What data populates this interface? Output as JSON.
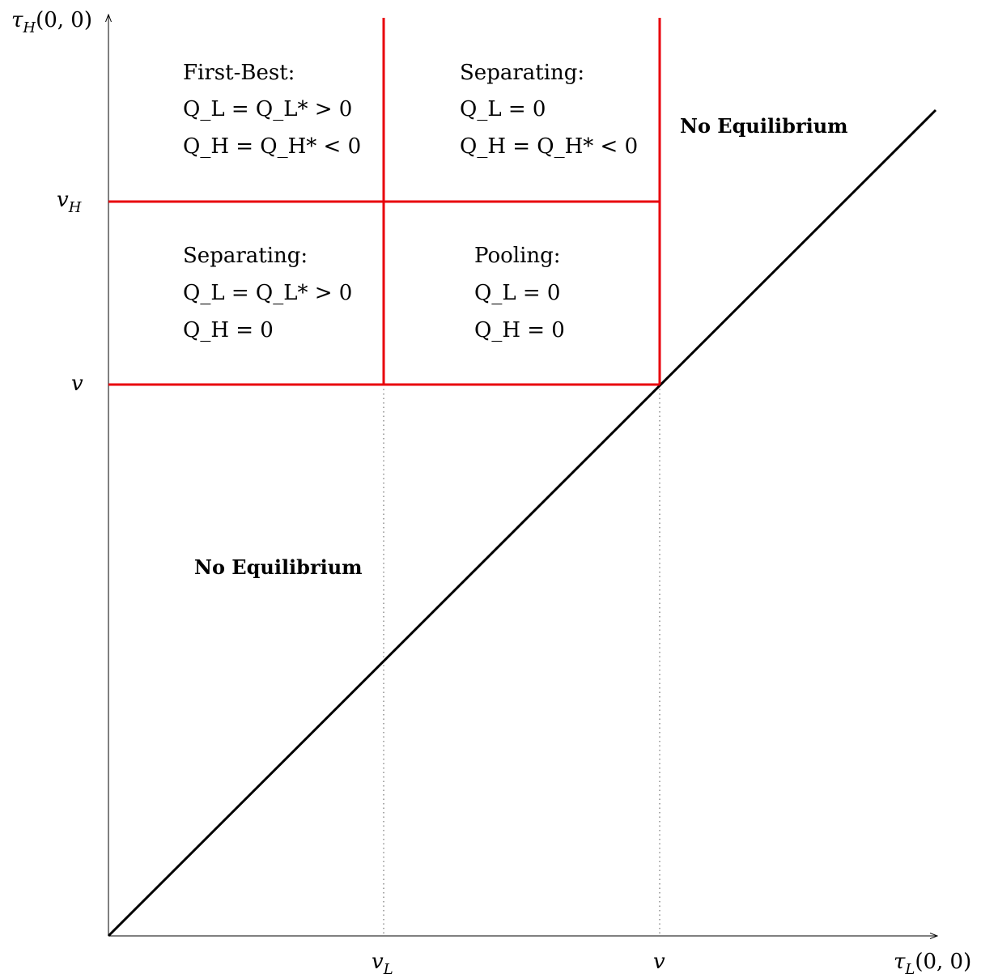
{
  "axes": {
    "x_label": {
      "main": "τ",
      "sub": "L",
      "args": "(0, 0)"
    },
    "y_label": {
      "main": "τ",
      "sub": "H",
      "args": "(0, 0)"
    }
  },
  "ticks": {
    "x": [
      {
        "main": "v",
        "sub": "L"
      },
      {
        "main": "v",
        "sub": ""
      }
    ],
    "y": [
      {
        "main": "v",
        "sub": "H"
      },
      {
        "main": "v",
        "sub": ""
      }
    ]
  },
  "regions": {
    "first_best": {
      "title": "First-Best:",
      "line1": "Q_L = Q_L* > 0",
      "line2": "Q_H = Q_H* < 0"
    },
    "separating_top": {
      "title": "Separating:",
      "line1": "Q_L = 0",
      "line2": "Q_H = Q_H* < 0"
    },
    "separating_mid": {
      "title": "Separating:",
      "line1": "Q_L = Q_L* > 0",
      "line2": "Q_H = 0"
    },
    "pooling": {
      "title": "Pooling:",
      "line1": "Q_L = 0",
      "line2": "Q_H = 0"
    }
  },
  "no_equilibrium": [
    "No Equilibrium",
    "No Equilibrium"
  ],
  "colors": {
    "boundary": "#e8000b",
    "diagonal": "#000000",
    "axis": "#000000",
    "guide": "#555555"
  }
}
